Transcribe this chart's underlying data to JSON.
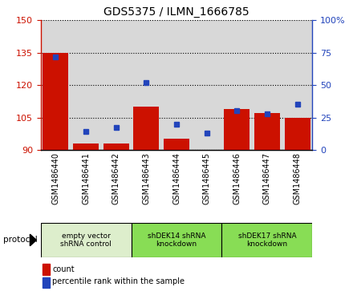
{
  "title": "GDS5375 / ILMN_1666785",
  "samples": [
    "GSM1486440",
    "GSM1486441",
    "GSM1486442",
    "GSM1486443",
    "GSM1486444",
    "GSM1486445",
    "GSM1486446",
    "GSM1486447",
    "GSM1486448"
  ],
  "counts": [
    135,
    93,
    93,
    110,
    95,
    90,
    109,
    107,
    105
  ],
  "percentiles": [
    72,
    14,
    17,
    52,
    20,
    13,
    30,
    28,
    35
  ],
  "ylim_left": [
    90,
    150
  ],
  "ylim_right": [
    0,
    100
  ],
  "yticks_left": [
    90,
    105,
    120,
    135,
    150
  ],
  "yticks_right": [
    0,
    25,
    50,
    75,
    100
  ],
  "bar_color": "#cc1100",
  "dot_color": "#2244bb",
  "groups": [
    {
      "label": "empty vector\nshRNA control",
      "start": 0,
      "end": 3,
      "color": "#ddeecc"
    },
    {
      "label": "shDEK14 shRNA\nknockdown",
      "start": 3,
      "end": 6,
      "color": "#88dd55"
    },
    {
      "label": "shDEK17 shRNA\nknockdown",
      "start": 6,
      "end": 9,
      "color": "#88dd55"
    }
  ],
  "protocol_label": "protocol",
  "legend_count": "count",
  "legend_percentile": "percentile rank within the sample",
  "bg_color": "#d8d8d8",
  "white_bg": "#ffffff"
}
